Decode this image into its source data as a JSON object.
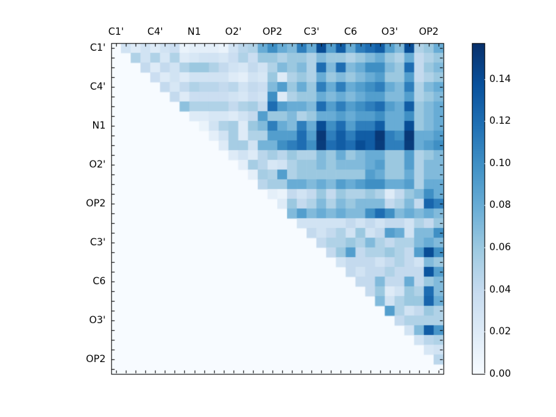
{
  "figure": {
    "background": "#ffffff",
    "frame_color": "#000000"
  },
  "chart_data": {
    "type": "heatmap",
    "title": "",
    "xlabel": "",
    "ylabel": "",
    "n": 34,
    "upper_triangular": true,
    "colormap": "Blues",
    "vmin": 0.0,
    "vmax": 0.157,
    "zero_color": "#f7fbff",
    "x_tick_labels": [
      "C1'",
      "C4'",
      "N1",
      "O2'",
      "OP2",
      "C3'",
      "C6",
      "O3'",
      "OP2"
    ],
    "y_tick_labels": [
      "C1'",
      "C4'",
      "N1",
      "O2'",
      "OP2",
      "C3'",
      "C6",
      "O3'",
      "OP2"
    ],
    "tick_label_indices": [
      0,
      4,
      8,
      12,
      16,
      20,
      24,
      28,
      32
    ],
    "colorbar": {
      "tick_values": [
        0.0,
        0.02,
        0.04,
        0.06,
        0.08,
        0.1,
        0.12,
        0.14
      ],
      "tick_labels": [
        "0.00",
        "0.02",
        "0.04",
        "0.06",
        "0.08",
        "0.10",
        "0.12",
        "0.14"
      ]
    },
    "matrix": [
      [
        0,
        0.03,
        0.02,
        0.03,
        0.02,
        0.03,
        0.035,
        0.01,
        0.015,
        0.015,
        0.015,
        0.01,
        0.03,
        0.045,
        0.05,
        0.08,
        0.1,
        0.08,
        0.07,
        0.11,
        0.08,
        0.14,
        0.09,
        0.13,
        0.08,
        0.11,
        0.12,
        0.13,
        0.09,
        0.07,
        0.14,
        0.05,
        0.06,
        0.08
      ],
      [
        0,
        0,
        0.05,
        0.03,
        0.05,
        0.025,
        0.05,
        0.02,
        0.025,
        0.03,
        0.03,
        0.025,
        0.035,
        0.05,
        0.035,
        0.06,
        0.06,
        0.05,
        0.06,
        0.06,
        0.05,
        0.07,
        0.06,
        0.06,
        0.05,
        0.06,
        0.07,
        0.08,
        0.06,
        0.05,
        0.08,
        0.04,
        0.05,
        0.06
      ],
      [
        0,
        0,
        0,
        0.04,
        0.02,
        0.04,
        0.03,
        0.05,
        0.06,
        0.06,
        0.05,
        0.04,
        0.03,
        0.025,
        0.04,
        0.03,
        0.05,
        0.07,
        0.06,
        0.07,
        0.05,
        0.12,
        0.07,
        0.12,
        0.07,
        0.08,
        0.1,
        0.1,
        0.07,
        0.06,
        0.12,
        0.04,
        0.06,
        0.07
      ],
      [
        0,
        0,
        0,
        0,
        0.035,
        0.02,
        0.03,
        0.02,
        0.03,
        0.03,
        0.03,
        0.03,
        0.02,
        0.015,
        0.03,
        0.025,
        0.06,
        0.02,
        0.05,
        0.06,
        0.05,
        0.08,
        0.06,
        0.07,
        0.06,
        0.07,
        0.08,
        0.09,
        0.06,
        0.06,
        0.09,
        0.04,
        0.05,
        0.06
      ],
      [
        0,
        0,
        0,
        0,
        0,
        0.04,
        0.025,
        0.04,
        0.05,
        0.045,
        0.045,
        0.04,
        0.045,
        0.03,
        0.04,
        0.035,
        0.07,
        0.09,
        0.06,
        0.08,
        0.06,
        0.11,
        0.08,
        0.11,
        0.08,
        0.09,
        0.1,
        0.11,
        0.08,
        0.07,
        0.11,
        0.05,
        0.07,
        0.08
      ],
      [
        0,
        0,
        0,
        0,
        0,
        0,
        0.04,
        0.02,
        0.035,
        0.035,
        0.035,
        0.035,
        0.03,
        0.025,
        0.035,
        0.03,
        0.1,
        0.02,
        0.05,
        0.06,
        0.06,
        0.08,
        0.07,
        0.08,
        0.07,
        0.08,
        0.09,
        0.09,
        0.07,
        0.07,
        0.09,
        0.05,
        0.06,
        0.07
      ],
      [
        0,
        0,
        0,
        0,
        0,
        0,
        0,
        0.065,
        0.05,
        0.05,
        0.05,
        0.05,
        0.04,
        0.05,
        0.055,
        0.04,
        0.12,
        0.09,
        0.08,
        0.08,
        0.07,
        0.12,
        0.09,
        0.11,
        0.09,
        0.1,
        0.11,
        0.12,
        0.09,
        0.08,
        0.13,
        0.06,
        0.07,
        0.08
      ],
      [
        0,
        0,
        0,
        0,
        0,
        0,
        0,
        0,
        0.02,
        0.02,
        0.025,
        0.025,
        0.02,
        0.03,
        0.04,
        0.09,
        0.06,
        0.06,
        0.07,
        0.05,
        0.06,
        0.08,
        0.08,
        0.09,
        0.08,
        0.09,
        0.09,
        0.1,
        0.08,
        0.08,
        0.1,
        0.06,
        0.07,
        0.08
      ],
      [
        0,
        0,
        0,
        0,
        0,
        0,
        0,
        0,
        0,
        0.01,
        0.03,
        0.05,
        0.055,
        0.02,
        0.06,
        0.07,
        0.11,
        0.08,
        0.07,
        0.11,
        0.08,
        0.14,
        0.1,
        0.12,
        0.09,
        0.11,
        0.11,
        0.13,
        0.08,
        0.08,
        0.14,
        0.06,
        0.07,
        0.08
      ],
      [
        0,
        0,
        0,
        0,
        0,
        0,
        0,
        0,
        0,
        0,
        0.015,
        0.03,
        0.055,
        0.02,
        0.05,
        0.05,
        0.09,
        0.09,
        0.09,
        0.12,
        0.09,
        0.152,
        0.11,
        0.13,
        0.11,
        0.13,
        0.13,
        0.152,
        0.11,
        0.1,
        0.152,
        0.08,
        0.08,
        0.09
      ],
      [
        0,
        0,
        0,
        0,
        0,
        0,
        0,
        0,
        0,
        0,
        0,
        0.02,
        0.055,
        0.055,
        0.03,
        0.075,
        0.075,
        0.1,
        0.11,
        0.12,
        0.1,
        0.15,
        0.12,
        0.13,
        0.12,
        0.14,
        0.13,
        0.15,
        0.11,
        0.11,
        0.15,
        0.08,
        0.09,
        0.1
      ],
      [
        0,
        0,
        0,
        0,
        0,
        0,
        0,
        0,
        0,
        0,
        0,
        0,
        0.02,
        0.03,
        0.02,
        0.045,
        0.055,
        0.045,
        0.06,
        0.05,
        0.05,
        0.07,
        0.06,
        0.08,
        0.06,
        0.07,
        0.08,
        0.08,
        0.06,
        0.06,
        0.09,
        0.05,
        0.06,
        0.07
      ],
      [
        0,
        0,
        0,
        0,
        0,
        0,
        0,
        0,
        0,
        0,
        0,
        0,
        0,
        0.015,
        0.055,
        0.045,
        0.025,
        0.03,
        0.05,
        0.06,
        0.06,
        0.07,
        0.06,
        0.07,
        0.07,
        0.07,
        0.08,
        0.09,
        0.06,
        0.06,
        0.09,
        0.05,
        0.07,
        0.07
      ],
      [
        0,
        0,
        0,
        0,
        0,
        0,
        0,
        0,
        0,
        0,
        0,
        0,
        0,
        0,
        0.015,
        0.055,
        0.05,
        0.09,
        0.05,
        0.06,
        0.06,
        0.06,
        0.06,
        0.06,
        0.06,
        0.06,
        0.09,
        0.08,
        0.06,
        0.06,
        0.08,
        0.05,
        0.07,
        0.07
      ],
      [
        0,
        0,
        0,
        0,
        0,
        0,
        0,
        0,
        0,
        0,
        0,
        0,
        0,
        0,
        0,
        0.045,
        0.055,
        0.055,
        0.08,
        0.08,
        0.07,
        0.08,
        0.07,
        0.09,
        0.08,
        0.09,
        0.1,
        0.1,
        0.08,
        0.08,
        0.09,
        0.05,
        0.08,
        0.08
      ],
      [
        0,
        0,
        0,
        0,
        0,
        0,
        0,
        0,
        0,
        0,
        0,
        0,
        0,
        0,
        0,
        0,
        0.015,
        0.01,
        0.04,
        0.03,
        0.04,
        0.06,
        0.04,
        0.06,
        0.05,
        0.05,
        0.06,
        0.05,
        0.02,
        0.04,
        0.06,
        0.07,
        0.1,
        0.08
      ],
      [
        0,
        0,
        0,
        0,
        0,
        0,
        0,
        0,
        0,
        0,
        0,
        0,
        0,
        0,
        0,
        0,
        0,
        0.02,
        0.06,
        0.04,
        0.05,
        0.07,
        0.05,
        0.07,
        0.06,
        0.07,
        0.07,
        0.07,
        0.04,
        0.05,
        0.07,
        0.04,
        0.125,
        0.11
      ],
      [
        0,
        0,
        0,
        0,
        0,
        0,
        0,
        0,
        0,
        0,
        0,
        0,
        0,
        0,
        0,
        0,
        0,
        0,
        0.07,
        0.09,
        0.07,
        0.08,
        0.07,
        0.08,
        0.07,
        0.07,
        0.1,
        0.12,
        0.1,
        0.07,
        0.08,
        0.07,
        0.08,
        0.07
      ],
      [
        0,
        0,
        0,
        0,
        0,
        0,
        0,
        0,
        0,
        0,
        0,
        0,
        0,
        0,
        0,
        0,
        0,
        0,
        0,
        0.03,
        0.03,
        0.03,
        0.03,
        0.03,
        0.04,
        0.03,
        0.04,
        0.03,
        0.04,
        0.04,
        0.03,
        0.05,
        0.04,
        0.06
      ],
      [
        0,
        0,
        0,
        0,
        0,
        0,
        0,
        0,
        0,
        0,
        0,
        0,
        0,
        0,
        0,
        0,
        0,
        0,
        0,
        0,
        0.04,
        0.03,
        0.04,
        0.05,
        0.03,
        0.06,
        0.03,
        0.04,
        0.09,
        0.08,
        0.03,
        0.07,
        0.07,
        0.1
      ],
      [
        0,
        0,
        0,
        0,
        0,
        0,
        0,
        0,
        0,
        0,
        0,
        0,
        0,
        0,
        0,
        0,
        0,
        0,
        0,
        0,
        0,
        0.04,
        0.05,
        0.05,
        0.06,
        0.05,
        0.07,
        0.05,
        0.04,
        0.05,
        0.05,
        0.07,
        0.08,
        0.07
      ],
      [
        0,
        0,
        0,
        0,
        0,
        0,
        0,
        0,
        0,
        0,
        0,
        0,
        0,
        0,
        0,
        0,
        0,
        0,
        0,
        0,
        0,
        0,
        0.04,
        0.06,
        0.09,
        0.04,
        0.05,
        0.05,
        0.06,
        0.05,
        0.04,
        0.09,
        0.14,
        0.1
      ],
      [
        0,
        0,
        0,
        0,
        0,
        0,
        0,
        0,
        0,
        0,
        0,
        0,
        0,
        0,
        0,
        0,
        0,
        0,
        0,
        0,
        0,
        0,
        0,
        0.03,
        0.04,
        0.04,
        0.04,
        0.03,
        0.04,
        0.05,
        0.04,
        0.03,
        0.07,
        0.06
      ],
      [
        0,
        0,
        0,
        0,
        0,
        0,
        0,
        0,
        0,
        0,
        0,
        0,
        0,
        0,
        0,
        0,
        0,
        0,
        0,
        0,
        0,
        0,
        0,
        0,
        0.04,
        0.03,
        0.04,
        0.04,
        0.05,
        0.04,
        0.04,
        0.04,
        0.135,
        0.09
      ],
      [
        0,
        0,
        0,
        0,
        0,
        0,
        0,
        0,
        0,
        0,
        0,
        0,
        0,
        0,
        0,
        0,
        0,
        0,
        0,
        0,
        0,
        0,
        0,
        0,
        0,
        0.04,
        0.04,
        0.07,
        0.04,
        0.04,
        0.08,
        0.04,
        0.06,
        0.07
      ],
      [
        0,
        0,
        0,
        0,
        0,
        0,
        0,
        0,
        0,
        0,
        0,
        0,
        0,
        0,
        0,
        0,
        0,
        0,
        0,
        0,
        0,
        0,
        0,
        0,
        0,
        0,
        0.04,
        0.06,
        0.02,
        0.03,
        0.06,
        0.05,
        0.12,
        0.07
      ],
      [
        0,
        0,
        0,
        0,
        0,
        0,
        0,
        0,
        0,
        0,
        0,
        0,
        0,
        0,
        0,
        0,
        0,
        0,
        0,
        0,
        0,
        0,
        0,
        0,
        0,
        0,
        0,
        0.07,
        0.03,
        0.05,
        0.06,
        0.06,
        0.125,
        0.08
      ],
      [
        0,
        0,
        0,
        0,
        0,
        0,
        0,
        0,
        0,
        0,
        0,
        0,
        0,
        0,
        0,
        0,
        0,
        0,
        0,
        0,
        0,
        0,
        0,
        0,
        0,
        0,
        0,
        0,
        0.09,
        0.05,
        0.03,
        0.04,
        0.06,
        0.05
      ],
      [
        0,
        0,
        0,
        0,
        0,
        0,
        0,
        0,
        0,
        0,
        0,
        0,
        0,
        0,
        0,
        0,
        0,
        0,
        0,
        0,
        0,
        0,
        0,
        0,
        0,
        0,
        0,
        0,
        0,
        0.04,
        0.05,
        0.05,
        0.05,
        0.05
      ],
      [
        0,
        0,
        0,
        0,
        0,
        0,
        0,
        0,
        0,
        0,
        0,
        0,
        0,
        0,
        0,
        0,
        0,
        0,
        0,
        0,
        0,
        0,
        0,
        0,
        0,
        0,
        0,
        0,
        0,
        0,
        0.03,
        0.07,
        0.13,
        0.095
      ],
      [
        0,
        0,
        0,
        0,
        0,
        0,
        0,
        0,
        0,
        0,
        0,
        0,
        0,
        0,
        0,
        0,
        0,
        0,
        0,
        0,
        0,
        0,
        0,
        0,
        0,
        0,
        0,
        0,
        0,
        0,
        0,
        0.03,
        0.045,
        0.05
      ],
      [
        0,
        0,
        0,
        0,
        0,
        0,
        0,
        0,
        0,
        0,
        0,
        0,
        0,
        0,
        0,
        0,
        0,
        0,
        0,
        0,
        0,
        0,
        0,
        0,
        0,
        0,
        0,
        0,
        0,
        0,
        0,
        0,
        0.025,
        0.03
      ],
      [
        0,
        0,
        0,
        0,
        0,
        0,
        0,
        0,
        0,
        0,
        0,
        0,
        0,
        0,
        0,
        0,
        0,
        0,
        0,
        0,
        0,
        0,
        0,
        0,
        0,
        0,
        0,
        0,
        0,
        0,
        0,
        0,
        0,
        0.045
      ],
      [
        0,
        0,
        0,
        0,
        0,
        0,
        0,
        0,
        0,
        0,
        0,
        0,
        0,
        0,
        0,
        0,
        0,
        0,
        0,
        0,
        0,
        0,
        0,
        0,
        0,
        0,
        0,
        0,
        0,
        0,
        0,
        0,
        0,
        0
      ]
    ]
  }
}
